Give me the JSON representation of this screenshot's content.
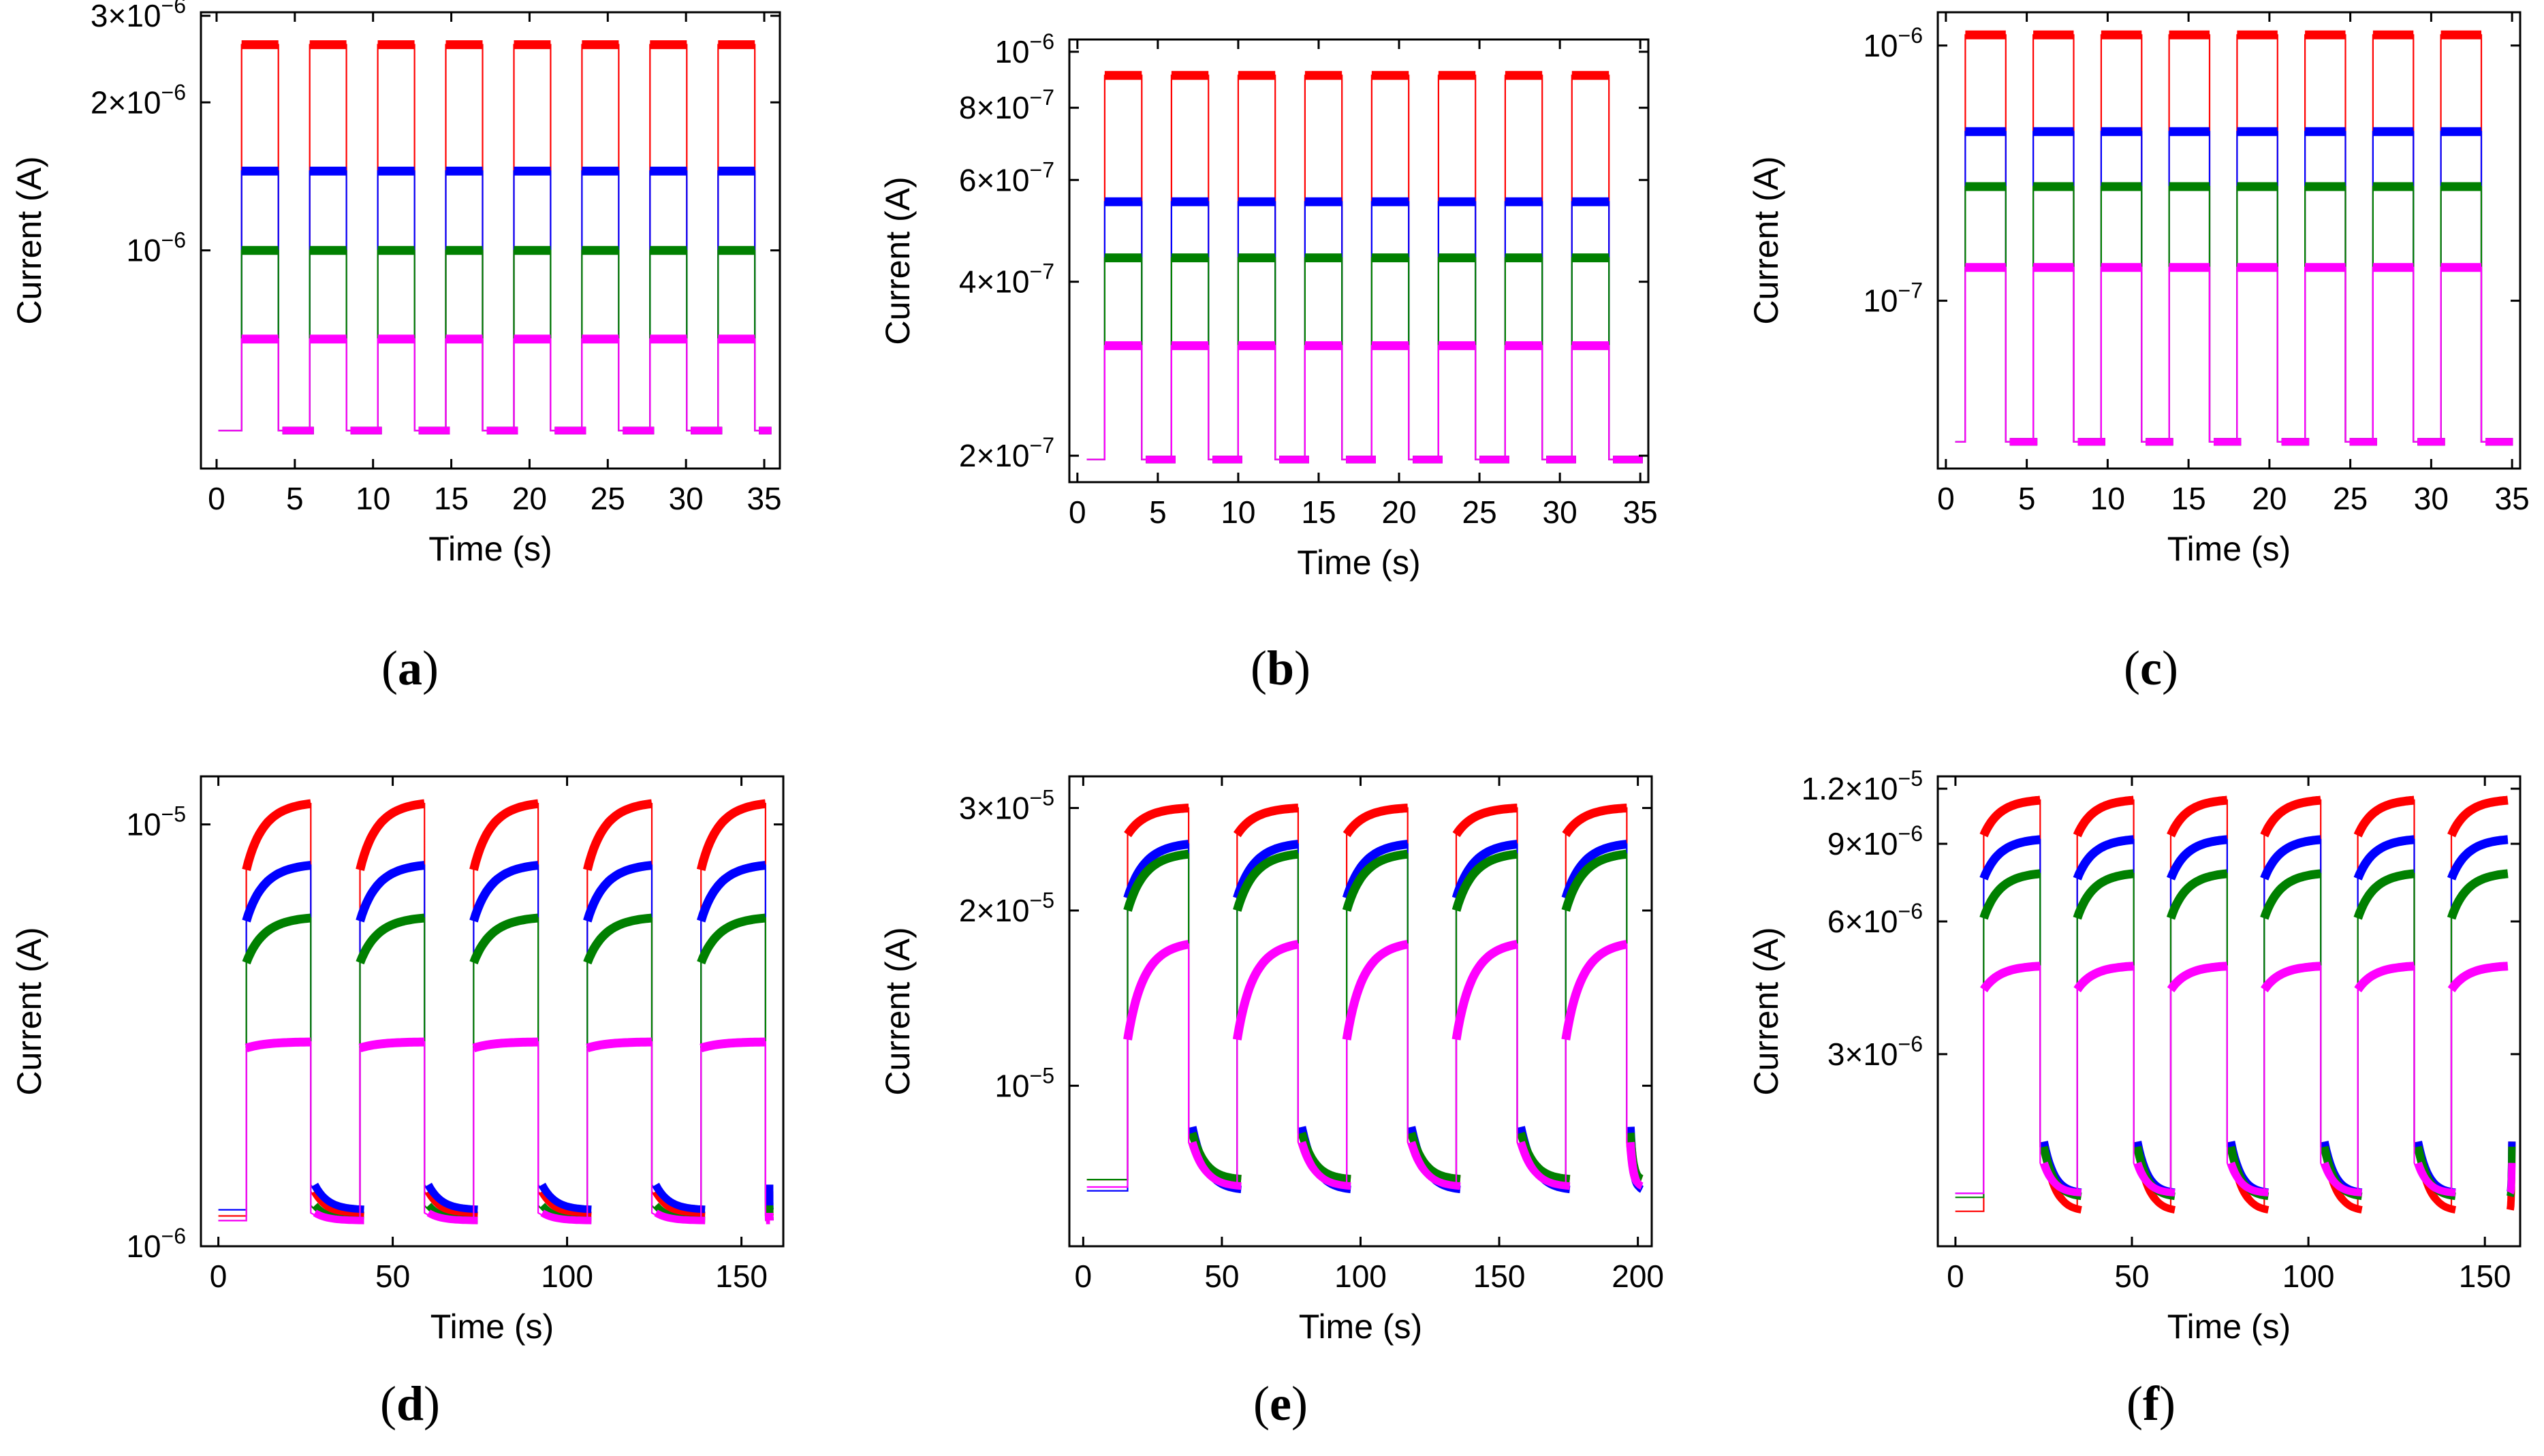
{
  "chart_data": [
    {
      "id": "a",
      "caption": "a",
      "type": "line",
      "y_scale": "log",
      "xlabel": "Time (s)",
      "ylabel": "Current (A)",
      "xlim": [
        -1,
        36
      ],
      "ylim": [
        3.6e-07,
        3.05e-06
      ],
      "x_ticks": [
        0,
        5,
        10,
        15,
        20,
        25,
        30,
        35
      ],
      "y_ticks": [
        {
          "value": 1e-06,
          "mantissa": "",
          "exponent": "−6"
        },
        {
          "value": 2e-06,
          "mantissa": "2",
          "exponent": "−6"
        },
        {
          "value": 3e-06,
          "mantissa": "3",
          "exponent": "−6"
        }
      ],
      "cycle": {
        "first_on": 1.6,
        "period": 4.35,
        "on_duration": 2.35,
        "count": 8,
        "x_end": 35.2
      },
      "series": [
        {
          "color": "#ff0000",
          "on": 2.62e-06,
          "off": 4.3e-07
        },
        {
          "color": "#0000ff",
          "on": 1.45e-06,
          "off": 4.3e-07
        },
        {
          "color": "#008000",
          "on": 1e-06,
          "off": 4.3e-07
        },
        {
          "color": "#ff00ff",
          "on": 6.6e-07,
          "off": 4.3e-07
        }
      ]
    },
    {
      "id": "b",
      "caption": "b",
      "type": "line",
      "y_scale": "log",
      "xlabel": "Time (s)",
      "ylabel": "Current (A)",
      "xlim": [
        -0.5,
        35.5
      ],
      "ylim": [
        1.8e-07,
        1.05e-06
      ],
      "x_ticks": [
        0,
        5,
        10,
        15,
        20,
        25,
        30,
        35
      ],
      "y_ticks": [
        {
          "value": 2e-07,
          "mantissa": "2",
          "exponent": "−7"
        },
        {
          "value": 4e-07,
          "mantissa": "4",
          "exponent": "−7"
        },
        {
          "value": 6e-07,
          "mantissa": "6",
          "exponent": "−7"
        },
        {
          "value": 8e-07,
          "mantissa": "8",
          "exponent": "−7"
        },
        {
          "value": 1e-06,
          "mantissa": "",
          "exponent": "−6"
        }
      ],
      "cycle": {
        "first_on": 1.7,
        "period": 4.15,
        "on_duration": 2.3,
        "count": 8,
        "x_end": 35.4
      },
      "series": [
        {
          "color": "#ff0000",
          "on": 9.1e-07,
          "off": 1.97e-07
        },
        {
          "color": "#0000ff",
          "on": 5.5e-07,
          "off": 1.97e-07
        },
        {
          "color": "#008000",
          "on": 4.4e-07,
          "off": 1.97e-07
        },
        {
          "color": "#ff00ff",
          "on": 3.1e-07,
          "off": 1.97e-07
        }
      ]
    },
    {
      "id": "c",
      "caption": "c",
      "type": "line",
      "y_scale": "log",
      "xlabel": "Time (s)",
      "ylabel": "Current (A)",
      "xlim": [
        -0.5,
        35.5
      ],
      "ylim": [
        2.2e-08,
        1.35e-06
      ],
      "x_ticks": [
        0,
        5,
        10,
        15,
        20,
        25,
        30,
        35
      ],
      "y_ticks": [
        {
          "value": 1e-07,
          "mantissa": "",
          "exponent": "−7"
        },
        {
          "value": 1e-06,
          "mantissa": "",
          "exponent": "−6"
        }
      ],
      "cycle": {
        "first_on": 1.2,
        "period": 4.2,
        "on_duration": 2.5,
        "count": 8,
        "x_end": 35.0
      },
      "series": [
        {
          "color": "#ff0000",
          "on": 1.1e-06,
          "off": 2.8e-08
        },
        {
          "color": "#0000ff",
          "on": 4.6e-07,
          "off": 2.8e-08
        },
        {
          "color": "#008000",
          "on": 2.8e-07,
          "off": 2.8e-08
        },
        {
          "color": "#ff00ff",
          "on": 1.35e-07,
          "off": 2.8e-08
        }
      ]
    },
    {
      "id": "d",
      "caption": "d",
      "type": "line",
      "y_scale": "log",
      "xlabel": "Time (s)",
      "ylabel": "Current (A)",
      "xlim": [
        -5,
        162
      ],
      "ylim": [
        1e-06,
        1.3e-05
      ],
      "x_ticks": [
        0,
        50,
        100,
        150
      ],
      "y_ticks": [
        {
          "value": 1e-06,
          "mantissa": "",
          "exponent": "−6"
        },
        {
          "value": 1e-05,
          "mantissa": "",
          "exponent": "−5"
        }
      ],
      "cycle": {
        "first_on": 8,
        "period": 32.6,
        "on_duration": 18.5,
        "count": 5,
        "x_end": 157
      },
      "series": [
        {
          "color": "#ff0000",
          "on_start": 7.8e-06,
          "on_end": 1.12e-05,
          "off_start": 1.35e-06,
          "off_end": 1.18e-06
        },
        {
          "color": "#0000ff",
          "on_start": 5.9e-06,
          "on_end": 8e-06,
          "off_start": 1.4e-06,
          "off_end": 1.22e-06
        },
        {
          "color": "#008000",
          "on_start": 4.7e-06,
          "on_end": 6e-06,
          "off_start": 1.25e-06,
          "off_end": 1.15e-06
        },
        {
          "color": "#ff00ff",
          "on_start": 2.95e-06,
          "on_end": 3.05e-06,
          "off_start": 1.2e-06,
          "off_end": 1.15e-06
        }
      ]
    },
    {
      "id": "e",
      "caption": "e",
      "type": "line",
      "y_scale": "log",
      "xlabel": "Time (s)",
      "ylabel": "Current (A)",
      "xlim": [
        -5,
        205
      ],
      "ylim": [
        5.3e-06,
        3.4e-05
      ],
      "x_ticks": [
        0,
        50,
        100,
        150,
        200
      ],
      "y_ticks": [
        {
          "value": 1e-05,
          "mantissa": "",
          "exponent": "−5"
        },
        {
          "value": 2e-05,
          "mantissa": "2",
          "exponent": "−5"
        },
        {
          "value": 3e-05,
          "mantissa": "3",
          "exponent": "−5"
        }
      ],
      "cycle": {
        "first_on": 16,
        "period": 39.5,
        "on_duration": 22,
        "count": 5,
        "x_end": 200
      },
      "series": [
        {
          "color": "#ff0000",
          "on_start": 2.7e-05,
          "on_end": 3e-05,
          "off_start": 8e-06,
          "off_end": 6.9e-06
        },
        {
          "color": "#0000ff",
          "on_start": 2.1e-05,
          "on_end": 2.6e-05,
          "off_start": 8.5e-06,
          "off_end": 6.6e-06
        },
        {
          "color": "#008000",
          "on_start": 2e-05,
          "on_end": 2.5e-05,
          "off_start": 8.3e-06,
          "off_end": 6.9e-06
        },
        {
          "color": "#ff00ff",
          "on_start": 1.2e-05,
          "on_end": 1.75e-05,
          "off_start": 8e-06,
          "off_end": 6.7e-06
        }
      ]
    },
    {
      "id": "f",
      "caption": "f",
      "type": "line",
      "y_scale": "log",
      "xlabel": "Time (s)",
      "ylabel": "Current (A)",
      "xlim": [
        -5,
        160
      ],
      "ylim": [
        1.1e-06,
        1.28e-05
      ],
      "x_ticks": [
        0,
        50,
        100,
        150
      ],
      "y_ticks": [
        {
          "value": 3e-06,
          "mantissa": "3",
          "exponent": "−6"
        },
        {
          "value": 6e-06,
          "mantissa": "6",
          "exponent": "−6"
        },
        {
          "value": 9e-06,
          "mantissa": "9",
          "exponent": "−6"
        },
        {
          "value": 1.2e-05,
          "mantissa": "1.2",
          "exponent": "−5"
        }
      ],
      "cycle": {
        "first_on": 8,
        "period": 26.5,
        "on_duration": 16,
        "count": 6,
        "x_end": 156
      },
      "series": [
        {
          "color": "#ff0000",
          "on_start": 9.4e-06,
          "on_end": 1.13e-05,
          "off_start": 1.9e-06,
          "off_end": 1.32e-06
        },
        {
          "color": "#0000ff",
          "on_start": 7.5e-06,
          "on_end": 9.2e-06,
          "off_start": 1.9e-06,
          "off_end": 1.45e-06
        },
        {
          "color": "#008000",
          "on_start": 6.1e-06,
          "on_end": 7.7e-06,
          "off_start": 1.85e-06,
          "off_end": 1.42e-06
        },
        {
          "color": "#ff00ff",
          "on_start": 4.2e-06,
          "on_end": 4.75e-06,
          "off_start": 1.7e-06,
          "off_end": 1.45e-06
        }
      ]
    }
  ]
}
